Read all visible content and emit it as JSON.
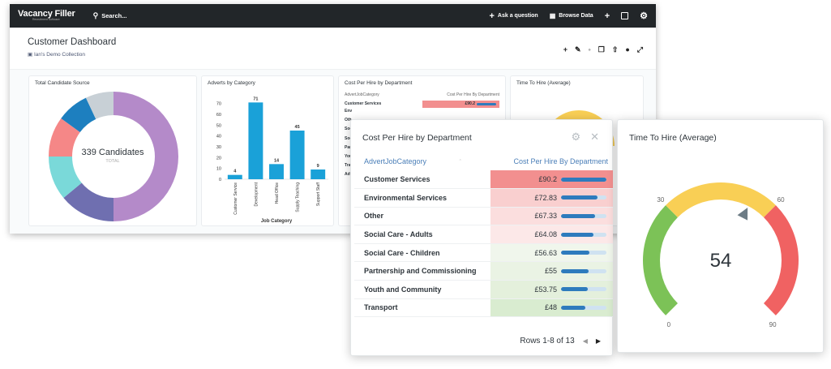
{
  "topbar": {
    "logo_main": "Vacancy Filler",
    "logo_sub": "Recruitment Software",
    "search_label": "Search...",
    "ask_label": "Ask a question",
    "browse_label": "Browse Data"
  },
  "dashboard": {
    "title": "Customer Dashboard",
    "collection": "Ian's Demo Collection"
  },
  "donut_card": {
    "title": "Total Candidate Source",
    "total_label": "339 Candidates",
    "sub_label": "TOTAL",
    "colors": [
      "#b48ac9",
      "#6f6fb0",
      "#7ad9d9",
      "#f58787",
      "#1d7fbf",
      "#c8d0d6"
    ]
  },
  "bar_card": {
    "title": "Adverts by Category"
  },
  "small_cost_card": {
    "title": "Cost Per Hire by Department",
    "col1": "AdvertJobCategory",
    "col2": "Cost Per Hire By Department",
    "row_label": "Customer Services",
    "row_value": "£90.2",
    "truncated_rows": [
      "Env",
      "Oth",
      "Soc",
      "Soc",
      "Par",
      "You",
      "Tra",
      "Adv"
    ]
  },
  "small_time_card": {
    "title": "Time To Hire (Average)"
  },
  "cost_card": {
    "title": "Cost Per Hire by Department",
    "col1": "AdvertJobCategory",
    "col2": "Cost Per Hire By Department",
    "rows": [
      {
        "category": "Customer Services",
        "value": "£90.2",
        "amount": 90.2,
        "bg": "#f28f8f"
      },
      {
        "category": "Environmental Services",
        "value": "£72.83",
        "amount": 72.83,
        "bg": "#f9cfcf"
      },
      {
        "category": "Other",
        "value": "£67.33",
        "amount": 67.33,
        "bg": "#fbdede"
      },
      {
        "category": "Social Care - Adults",
        "value": "£64.08",
        "amount": 64.08,
        "bg": "#fce8e8"
      },
      {
        "category": "Social Care - Children",
        "value": "£56.63",
        "amount": 56.63,
        "bg": "#f0f6ec"
      },
      {
        "category": "Partnership and Commissioning",
        "value": "£55",
        "amount": 55,
        "bg": "#eaf3e4"
      },
      {
        "category": "Youth and Community",
        "value": "£53.75",
        "amount": 53.75,
        "bg": "#e4f0dc"
      },
      {
        "category": "Transport",
        "value": "£48",
        "amount": 48,
        "bg": "#d9ecd0"
      }
    ],
    "footer": "Rows 1-8 of 13"
  },
  "time_card": {
    "title": "Time To Hire (Average)",
    "value": "54",
    "min": "0",
    "t1": "30",
    "t2": "60",
    "max": "90",
    "colors": {
      "green": "#7cc257",
      "yellow": "#f9cf55",
      "red": "#f06262"
    }
  },
  "chart_data": {
    "type": "bar",
    "title": "Adverts by Category",
    "xlabel": "Job Category",
    "ylabel": "",
    "categories": [
      "Customer Service",
      "Development",
      "Head Office",
      "Supply Teaching",
      "Support Staff"
    ],
    "values": [
      4,
      71,
      14,
      45,
      9
    ],
    "yticks": [
      "0",
      "10",
      "20",
      "30",
      "40",
      "50",
      "60",
      "70"
    ],
    "ylim": [
      0,
      75
    ],
    "color": "#1aa1d8"
  },
  "donut_data": {
    "type": "pie",
    "title": "Total Candidate Source",
    "values": [
      50,
      14,
      11,
      10,
      8,
      7
    ]
  }
}
